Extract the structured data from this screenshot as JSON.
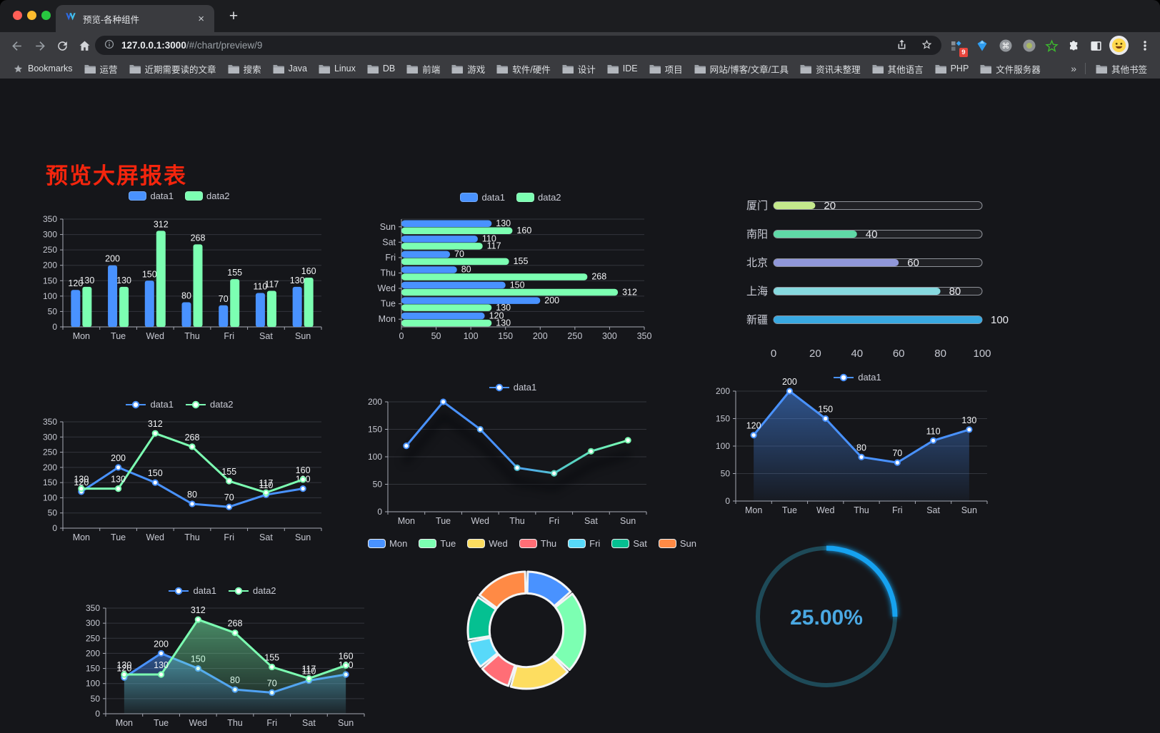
{
  "browser": {
    "tab": {
      "title": "预览-各种组件",
      "close_label": "×"
    },
    "new_tab_label": "+",
    "omnibox": {
      "host": "127.0.0.1:3000",
      "path": "/#/chart/preview/9"
    },
    "actions": {
      "extension_badge": "9"
    },
    "bookmarks": [
      {
        "icon": "star",
        "label": "Bookmarks"
      },
      {
        "icon": "folder",
        "label": "运营"
      },
      {
        "icon": "folder",
        "label": "近期需要读的文章"
      },
      {
        "icon": "folder",
        "label": "搜索"
      },
      {
        "icon": "folder",
        "label": "Java"
      },
      {
        "icon": "folder",
        "label": "Linux"
      },
      {
        "icon": "folder",
        "label": "DB"
      },
      {
        "icon": "folder",
        "label": "前端"
      },
      {
        "icon": "folder",
        "label": "游戏"
      },
      {
        "icon": "folder",
        "label": "软件/硬件"
      },
      {
        "icon": "folder",
        "label": "设计"
      },
      {
        "icon": "folder",
        "label": "IDE"
      },
      {
        "icon": "folder",
        "label": "项目"
      },
      {
        "icon": "folder",
        "label": "网站/博客/文章/工具"
      },
      {
        "icon": "folder",
        "label": "资讯未整理"
      },
      {
        "icon": "folder",
        "label": "其他语言"
      },
      {
        "icon": "folder",
        "label": "PHP"
      },
      {
        "icon": "folder",
        "label": "文件服务器"
      }
    ],
    "bookmarks_overflow": "»",
    "other_bookmarks": "其他书签"
  },
  "page": {
    "title": "预览大屏报表",
    "title_color": "#f5250d"
  },
  "palette": {
    "axis": "#a6a9b4",
    "grid": "#33353c",
    "tick": "#c6c8d1",
    "vlabel": "#f2f3f5",
    "legend_text": "#c8cad4",
    "background": "#15161a"
  },
  "chart_data": [
    {
      "id": "grouped-bar",
      "type": "bar",
      "categories": [
        "Mon",
        "Tue",
        "Wed",
        "Thu",
        "Fri",
        "Sat",
        "Sun"
      ],
      "series": [
        {
          "name": "data1",
          "color": "#4992ff",
          "values": [
            120,
            200,
            150,
            80,
            70,
            110,
            130
          ]
        },
        {
          "name": "data2",
          "color": "#7cffb2",
          "values": [
            130,
            130,
            312,
            268,
            155,
            117,
            160
          ]
        }
      ],
      "ylim": [
        0,
        350
      ],
      "yticks": [
        0,
        50,
        100,
        150,
        200,
        250,
        300,
        350
      ],
      "show_labels": true
    },
    {
      "id": "grouped-bar-horizontal",
      "type": "bar-horizontal",
      "categories": [
        "Mon",
        "Tue",
        "Wed",
        "Thu",
        "Fri",
        "Sat",
        "Sun"
      ],
      "series": [
        {
          "name": "data1",
          "color": "#4992ff",
          "values": [
            120,
            200,
            150,
            80,
            70,
            110,
            130
          ]
        },
        {
          "name": "data2",
          "color": "#7cffb2",
          "values": [
            130,
            130,
            312,
            268,
            155,
            117,
            160
          ]
        }
      ],
      "xlim": [
        0,
        350
      ],
      "xticks": [
        0,
        50,
        100,
        150,
        200,
        250,
        300,
        350
      ],
      "show_labels": true
    },
    {
      "id": "city-progress",
      "type": "progress",
      "max": 100,
      "items": [
        {
          "label": "厦门",
          "value": 20,
          "color": "#c4e98c"
        },
        {
          "label": "南阳",
          "value": 40,
          "color": "#5fd8a6"
        },
        {
          "label": "北京",
          "value": 60,
          "color": "#9097d9"
        },
        {
          "label": "上海",
          "value": 80,
          "color": "#86d9df"
        },
        {
          "label": "新疆",
          "value": 100,
          "color": "#39a9e2"
        }
      ],
      "xticks": [
        0,
        20,
        40,
        60,
        80,
        100
      ]
    },
    {
      "id": "double-line",
      "type": "line",
      "categories": [
        "Mon",
        "Tue",
        "Wed",
        "Thu",
        "Fri",
        "Sat",
        "Sun"
      ],
      "series": [
        {
          "name": "data1",
          "color": "#4992ff",
          "values": [
            120,
            200,
            150,
            80,
            70,
            110,
            130
          ]
        },
        {
          "name": "data2",
          "color": "#7cffb2",
          "values": [
            130,
            130,
            312,
            268,
            155,
            117,
            160
          ]
        }
      ],
      "ylim": [
        0,
        350
      ],
      "yticks": [
        0,
        50,
        100,
        150,
        200,
        250,
        300,
        350
      ],
      "show_labels": true
    },
    {
      "id": "gradient-line",
      "type": "line",
      "categories": [
        "Mon",
        "Tue",
        "Wed",
        "Thu",
        "Fri",
        "Sat",
        "Sun"
      ],
      "series": [
        {
          "name": "data1",
          "color": "#4992ff",
          "color_end": "#7cffb2",
          "gradient": true,
          "values": [
            120,
            200,
            150,
            80,
            70,
            110,
            130
          ],
          "dot_colors": [
            "#4992ff",
            "#4992ff",
            "#4f9ff2",
            "#53c2d8",
            "#5cd4bd",
            "#6ae8a8",
            "#7cffb2"
          ]
        }
      ],
      "ylim": [
        0,
        200
      ],
      "yticks": [
        0,
        50,
        100,
        150,
        200
      ],
      "show_labels": false,
      "shadow": true
    },
    {
      "id": "area-line",
      "type": "line",
      "categories": [
        "Mon",
        "Tue",
        "Wed",
        "Thu",
        "Fri",
        "Sat",
        "Sun"
      ],
      "series": [
        {
          "name": "data1",
          "color": "#4992ff",
          "area": true,
          "values": [
            120,
            200,
            150,
            80,
            70,
            110,
            130
          ]
        }
      ],
      "ylim": [
        0,
        200
      ],
      "yticks": [
        0,
        50,
        100,
        150,
        200
      ],
      "show_labels": true
    },
    {
      "id": "double-area-line",
      "type": "line",
      "categories": [
        "Mon",
        "Tue",
        "Wed",
        "Thu",
        "Fri",
        "Sat",
        "Sun"
      ],
      "series": [
        {
          "name": "data1",
          "color": "#4992ff",
          "area": true,
          "values": [
            120,
            200,
            150,
            80,
            70,
            110,
            130
          ]
        },
        {
          "name": "data2",
          "color": "#7cffb2",
          "area": true,
          "values": [
            130,
            130,
            312,
            268,
            155,
            117,
            160
          ]
        }
      ],
      "ylim": [
        0,
        350
      ],
      "yticks": [
        0,
        50,
        100,
        150,
        200,
        250,
        300,
        350
      ],
      "show_labels": true
    },
    {
      "id": "week-donut",
      "type": "pie",
      "inner_ratio": 0.63,
      "items": [
        {
          "label": "Mon",
          "value": 120,
          "color": "#4992ff"
        },
        {
          "label": "Tue",
          "value": 200,
          "color": "#7cffb2"
        },
        {
          "label": "Wed",
          "value": 150,
          "color": "#fddd60"
        },
        {
          "label": "Thu",
          "value": 80,
          "color": "#ff6e76"
        },
        {
          "label": "Fri",
          "value": 70,
          "color": "#58d9f9"
        },
        {
          "label": "Sat",
          "value": 110,
          "color": "#05c091"
        },
        {
          "label": "Sun",
          "value": 130,
          "color": "#ff8a45"
        }
      ]
    },
    {
      "id": "percent-gauge",
      "type": "gauge",
      "value": 25,
      "max": 100,
      "label": "25.00%",
      "arc_color": "#14a2f0",
      "track_color": "#1e4a58",
      "text_color": "#4aa8e2"
    }
  ]
}
